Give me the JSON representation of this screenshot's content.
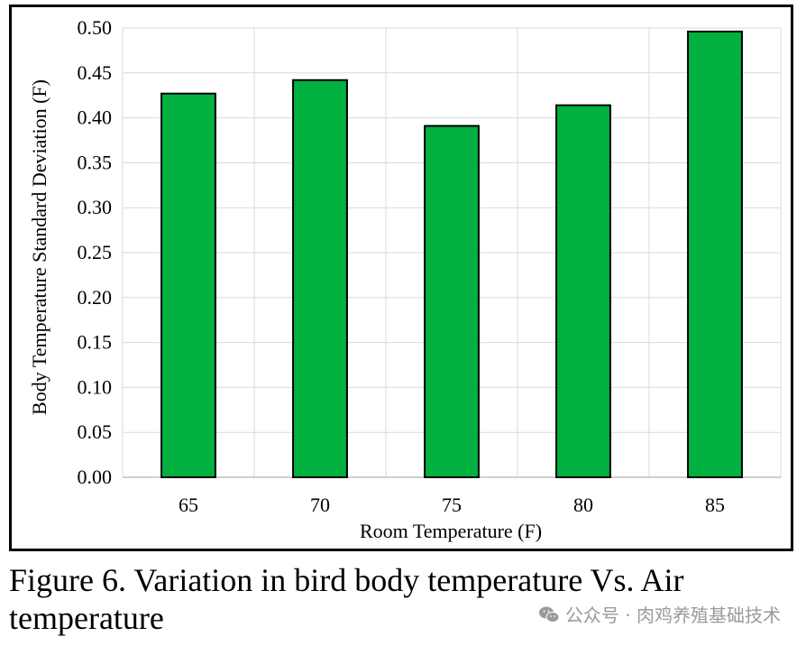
{
  "chart_data": {
    "type": "bar",
    "categories": [
      "65",
      "70",
      "75",
      "80",
      "85"
    ],
    "values": [
      0.427,
      0.442,
      0.391,
      0.414,
      0.496
    ],
    "title": "",
    "xlabel": "Room Temperature (F)",
    "ylabel": "Body Temperature Standard Deviation (F)",
    "ylim": [
      0,
      0.5
    ],
    "yticks": [
      "0.00",
      "0.05",
      "0.10",
      "0.15",
      "0.20",
      "0.25",
      "0.30",
      "0.35",
      "0.40",
      "0.45",
      "0.50"
    ],
    "grid": true,
    "legend": "none",
    "bar_color": "#00b140",
    "bar_edge_color": "#000000"
  },
  "caption": "Figure 6.  Variation in bird body temperature Vs. Air temperature",
  "watermark": "公众号 · 肉鸡养殖基础技术",
  "watermark_icon": "wechat-icon"
}
